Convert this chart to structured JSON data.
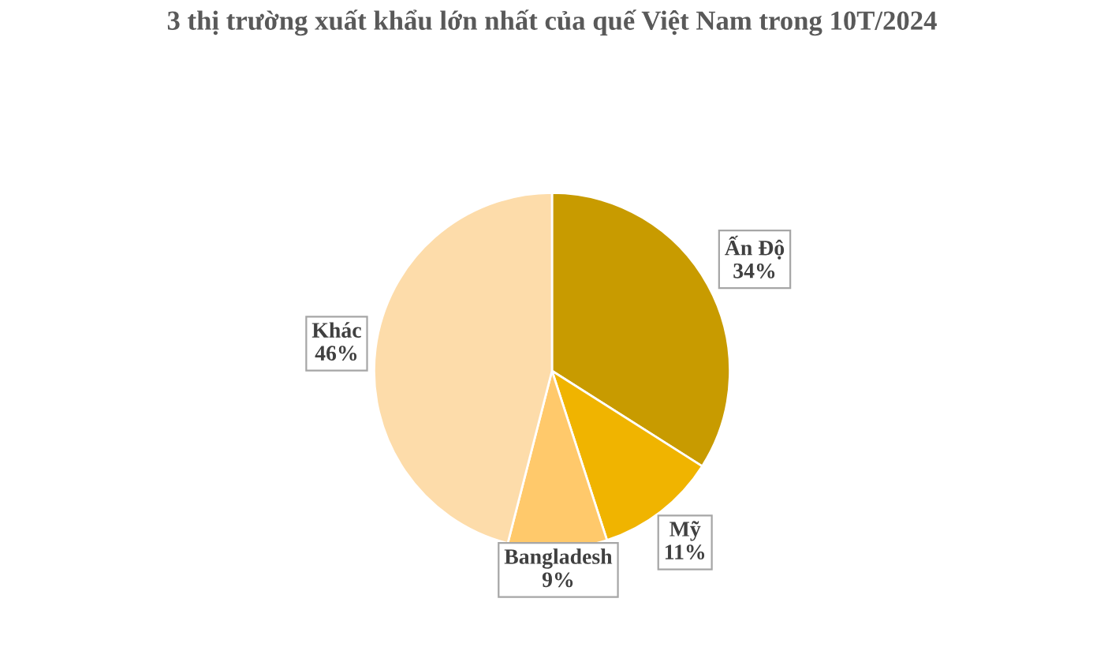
{
  "chart_data": {
    "type": "pie",
    "title": "3 thị trường xuất khẩu lớn nhất của quế Việt Nam trong 10T/2024",
    "categories": [
      "Ấn Độ",
      "Mỹ",
      "Bangladesh",
      "Khác"
    ],
    "values": [
      34,
      11,
      9,
      46
    ],
    "value_labels": [
      "34%",
      "11%",
      "9%",
      "46%"
    ],
    "colors": [
      "#c89b00",
      "#f0b400",
      "#ffc96b",
      "#fddcaa"
    ],
    "legend": false
  }
}
